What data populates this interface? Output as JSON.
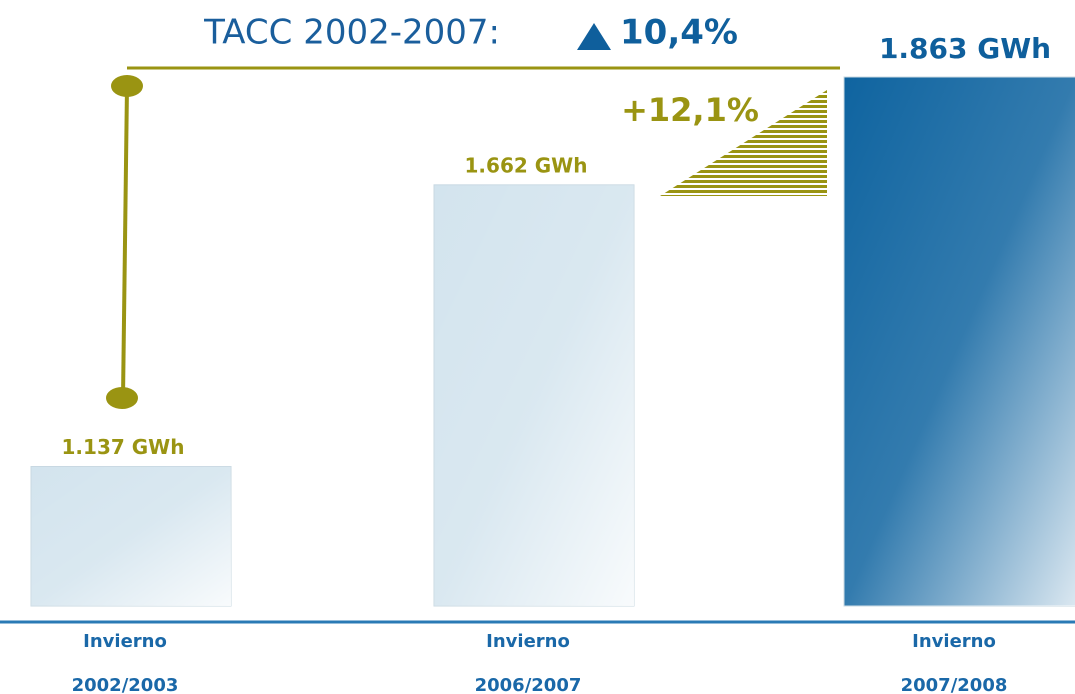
{
  "chart_data": {
    "type": "bar",
    "title": "TACC 2002-2007:",
    "title_value": "10,4%",
    "annotation": "+12,1%",
    "categories": [
      [
        "Invierno",
        "2002/2003"
      ],
      [
        "Invierno",
        "2006/2007"
      ],
      [
        "Invierno",
        "2007/2008"
      ]
    ],
    "values": [
      1137,
      1662,
      1863
    ],
    "value_labels": [
      "1.137 GWh",
      "1.662 GWh",
      "1.863 GWh"
    ],
    "colors": [
      "#d3e4ee",
      "#d3e4ee",
      "#0f64a0"
    ],
    "label_colors": [
      "#9a9412",
      "#9a9412",
      "#0f5f9c"
    ],
    "ylim": [
      877,
      1863
    ]
  }
}
